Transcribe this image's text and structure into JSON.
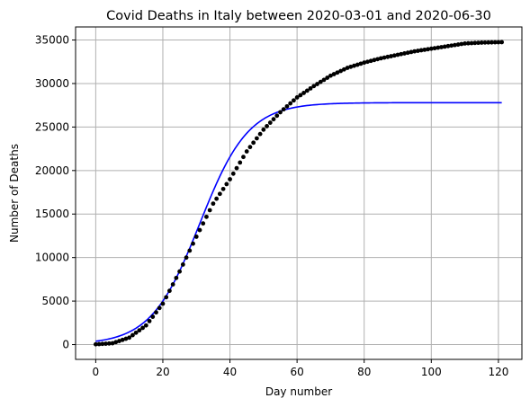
{
  "chart_data": {
    "type": "scatter",
    "title": "Covid Deaths in Italy between 2020-03-01 and 2020-06-30",
    "xlabel": "Day number",
    "ylabel": "Number of Deaths",
    "xlim": [
      -6,
      127
    ],
    "ylim": [
      -1700,
      36500
    ],
    "xticks": [
      0,
      20,
      40,
      60,
      80,
      100,
      120
    ],
    "yticks": [
      0,
      5000,
      10000,
      15000,
      20000,
      25000,
      30000,
      35000
    ],
    "grid": true,
    "colors": {
      "observed": "#000000",
      "fit": "#0000ff"
    },
    "observed": {
      "day_anchors": [
        0,
        5,
        10,
        15,
        20,
        25,
        30,
        35,
        40,
        45,
        50,
        55,
        60,
        65,
        70,
        75,
        80,
        85,
        90,
        95,
        100,
        105,
        110,
        115,
        121
      ],
      "deaths_anchors": [
        30,
        150,
        800,
        2200,
        4700,
        8400,
        12400,
        16200,
        19000,
        22200,
        24700,
        26700,
        28400,
        29700,
        30900,
        31800,
        32400,
        32900,
        33300,
        33700,
        34000,
        34300,
        34600,
        34700,
        34750
      ]
    },
    "fit": {
      "model": "logistic",
      "L": 27800,
      "k": 0.138,
      "x0": 31,
      "day_range": [
        0,
        121
      ]
    }
  }
}
